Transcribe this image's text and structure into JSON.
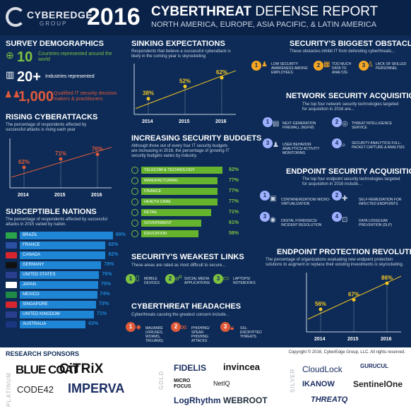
{
  "header": {
    "logo_name": "CYBEREDGE",
    "logo_sub": "GROUP",
    "year": "2016",
    "title_bold": "CYBERTHREAT",
    "title_rest": " DEFENSE REPORT",
    "subtitle": "NORTH AMERICA, EUROPE, ASIA PACIFIC, & LATIN AMERICA"
  },
  "colors": {
    "accent_green": "#7dc242",
    "accent_blue": "#1f86d6",
    "accent_orange": "#f5a623",
    "accent_red": "#e05a3a",
    "background": "#0d2b56"
  },
  "demographics": {
    "title": "SURVEY DEMOGRAPHICS",
    "items": [
      {
        "icon": "globe-icon",
        "value": "10",
        "text": "Countries represented around the world"
      },
      {
        "icon": "building-icon",
        "value": "20+",
        "text": "Industries represented"
      },
      {
        "icon": "people-icon",
        "value": "1,000",
        "text": "Qualified IT security decision makers & practitioners"
      }
    ]
  },
  "rising": {
    "title": "RISING CYBERATTACKS",
    "desc": "The percentage of respondents affected by successful attacks is rising each year",
    "chart_data": {
      "type": "line",
      "x": [
        "2014",
        "2015",
        "2016"
      ],
      "values": [
        62,
        71,
        76
      ],
      "labels": [
        "62%",
        "71%",
        "76%"
      ]
    }
  },
  "sinking": {
    "title": "SINKING EXPECTATIONS",
    "desc": "Respondents that believe a successful cyberattack is likely in the coming year is skyrocketing",
    "chart_data": {
      "type": "line",
      "x": [
        "2014",
        "2015",
        "2016"
      ],
      "values": [
        38,
        52,
        62
      ],
      "labels": [
        "38%",
        "52%",
        "62%"
      ]
    }
  },
  "obstacles": {
    "title": "SECURITY'S BIGGEST OBSTACLES",
    "desc": "These obstacles inhibit IT from defending cyberthreats...",
    "items": [
      {
        "n": "1",
        "text": "LOW SECURITY AWARENESS AMONG EMPLOYEES"
      },
      {
        "n": "2",
        "text": "TOO MUCH DATA TO ANALYZE"
      },
      {
        "n": "3",
        "text": "LACK OF SKILLED PERSONNEL"
      }
    ]
  },
  "network": {
    "title": "NETWORK SECURITY ACQUISITIONS",
    "desc": "The top four network security technologies targeted for acquisition in 2016 are...",
    "items": [
      {
        "n": "1",
        "text": "NEXT-GENERATION FIREWALL (NGFW)"
      },
      {
        "n": "2",
        "text": "THREAT INTELLIGENCE SERVICE"
      },
      {
        "n": "3",
        "text": "USER BEHAVIOR ANALYTICS/ ACTIVITY MONITORING"
      },
      {
        "n": "4",
        "text": "SECURITY ANALYTICS/ FULL-PACKET CAPTURE & ANALYSIS"
      }
    ]
  },
  "budgets": {
    "title": "INCREASING SECURITY BUDGETS",
    "desc": "Although three out of every four IT security budgets are increasing in 2016, the percentage of growing IT security budgets varies by industry.",
    "rows": [
      {
        "name": "TELECOM & TECHNOLOGY",
        "value": 82,
        "label": "82%"
      },
      {
        "name": "MANUFACTURING",
        "value": 77,
        "label": "77%"
      },
      {
        "name": "FINANCE",
        "value": 77,
        "label": "77%"
      },
      {
        "name": "HEALTH CARE",
        "value": 77,
        "label": "77%"
      },
      {
        "name": "RETAIL",
        "value": 71,
        "label": "71%"
      },
      {
        "name": "GOVERNMENT",
        "value": 61,
        "label": "61%"
      },
      {
        "name": "EDUCATION",
        "value": 58,
        "label": "58%"
      }
    ]
  },
  "endpoint": {
    "title": "ENDPOINT SECURITY ACQUISITIONS",
    "desc": "The top four endpoint security technologies targeted for acquisition in 2016 include...",
    "items": [
      {
        "n": "1",
        "text": "CONTAINERIZATION/ MICRO-VIRTUALIZATION"
      },
      {
        "n": "2",
        "text": "SELF-REMEDIATION FOR INFECTED ENDPOINTS"
      },
      {
        "n": "3",
        "text": "DIGITAL FORENSICS/ INCIDENT RESOLUTION"
      },
      {
        "n": "4",
        "text": "DATA LOSS/LEAK PREVENTION (DLP)"
      }
    ]
  },
  "nations": {
    "title": "SUSCEPTIBLE NATIONS",
    "desc": "The percentage of respondents affected by successful attacks in 2015 varied by nation.",
    "rows": [
      {
        "name": "BRAZIL",
        "value": 89,
        "label": "89%"
      },
      {
        "name": "FRANCE",
        "value": 82,
        "label": "82%"
      },
      {
        "name": "CANADA",
        "value": 82,
        "label": "82%"
      },
      {
        "name": "GERMANY",
        "value": 78,
        "label": "78%"
      },
      {
        "name": "UNITED STATES",
        "value": 76,
        "label": "76%"
      },
      {
        "name": "JAPAN",
        "value": 75,
        "label": "75%"
      },
      {
        "name": "MEXICO",
        "value": 74,
        "label": "74%"
      },
      {
        "name": "SINGAPORE",
        "value": 73,
        "label": "73%"
      },
      {
        "name": "UNITED KINGDOM",
        "value": 71,
        "label": "71%"
      },
      {
        "name": "AUSTRALIA",
        "value": 63,
        "label": "63%"
      }
    ]
  },
  "weakest": {
    "title": "SECURITY'S WEAKEST LINKS",
    "desc": "These areas are rated as most difficult to secure...",
    "items": [
      {
        "n": "1",
        "text": "MOBILE DEVICES"
      },
      {
        "n": "2",
        "text": "SOCIAL MEDIA APPLICATIONS"
      },
      {
        "n": "3",
        "text": "LAPTOPS/ NOTEBOOKS"
      }
    ]
  },
  "headaches": {
    "title": "CYBERTHREAT HEADACHES",
    "desc": "Cyberthreats causing the greatest concern include...",
    "items": [
      {
        "n": "1",
        "text": "MALWARE (VIRUSES, WORMS, TROJANS)"
      },
      {
        "n": "2",
        "text": "PHISHING/ SPEAR-PHISHING ATTACKS"
      },
      {
        "n": "3",
        "text": "SSL-ENCRYPTED THREATS"
      }
    ]
  },
  "revolution": {
    "title": "ENDPOINT PROTECTION REVOLUTION",
    "desc": "The percentage of organizations evaluating new endpoint protection solutions to augment or replace their existing investments is skyrocketing.",
    "chart_data": {
      "type": "line",
      "x": [
        "2014",
        "2015",
        "2016"
      ],
      "values": [
        56,
        67,
        86
      ],
      "labels": [
        "56%",
        "67%",
        "86%"
      ]
    }
  },
  "sponsors": {
    "title": "RESEARCH SPONSORS",
    "copyright": "Copyright © 2016, CyberEdge Group, LLC. All rights reserved.",
    "tiers": {
      "platinum": "PLATINUM",
      "gold": "GOLD",
      "silver": "SILVER"
    },
    "platinum": [
      "BLUE COAT",
      "CiTRiX",
      "CODE42",
      "IMPERVA"
    ],
    "gold": [
      "FIDELIS",
      "invincea",
      "MICRO FOCUS",
      "NetIQ",
      "LogRhythm",
      "WEBROOT"
    ],
    "silver": [
      "CloudLock",
      "GURUCUL",
      "IKANOW",
      "SentinelOne",
      "THREATQ"
    ]
  }
}
